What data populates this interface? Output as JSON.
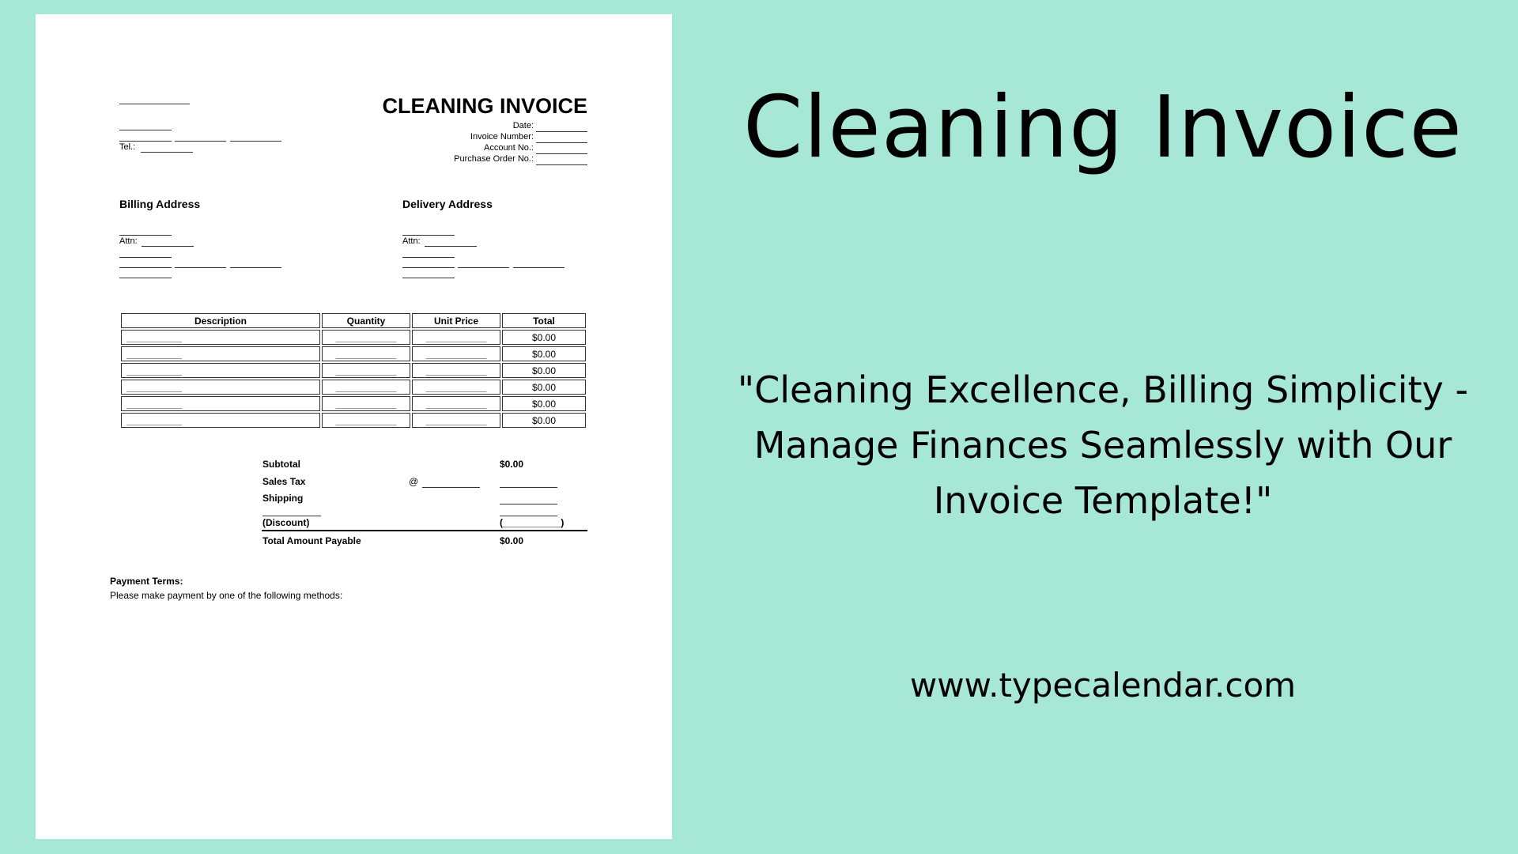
{
  "invoice": {
    "title": "CLEANING INVOICE",
    "tel_label": "Tel.:",
    "meta_labels": [
      "Date:",
      "Invoice Number:",
      "Account No.:",
      "Purchase Order No.:"
    ],
    "billing_heading": "Billing Address",
    "delivery_heading": "Delivery Address",
    "attn_label": "Attn:",
    "table": {
      "headers": [
        "Description",
        "Quantity",
        "Unit Price",
        "Total"
      ],
      "rows": [
        {
          "total": "$0.00"
        },
        {
          "total": "$0.00"
        },
        {
          "total": "$0.00"
        },
        {
          "total": "$0.00"
        },
        {
          "total": "$0.00"
        },
        {
          "total": "$0.00"
        }
      ]
    },
    "summary": {
      "subtotal_label": "Subtotal",
      "subtotal_value": "$0.00",
      "sales_tax_label": "Sales Tax",
      "at_symbol": "@",
      "shipping_label": "Shipping",
      "discount_label": "(Discount)",
      "discount_value": "(___________)",
      "total_label": "Total Amount Payable",
      "total_value": "$0.00"
    },
    "payment_terms_heading": "Payment Terms:",
    "payment_terms_text": "Please make payment by one of the following methods:"
  },
  "promo": {
    "heading": "Cleaning Invoice",
    "tagline": "\"Cleaning Excellence, Billing Simplicity - Manage Finances Seamlessly with Our Invoice Template!\"",
    "website": "www.typecalendar.com"
  },
  "colors": {
    "background": "#a7e7d6"
  }
}
